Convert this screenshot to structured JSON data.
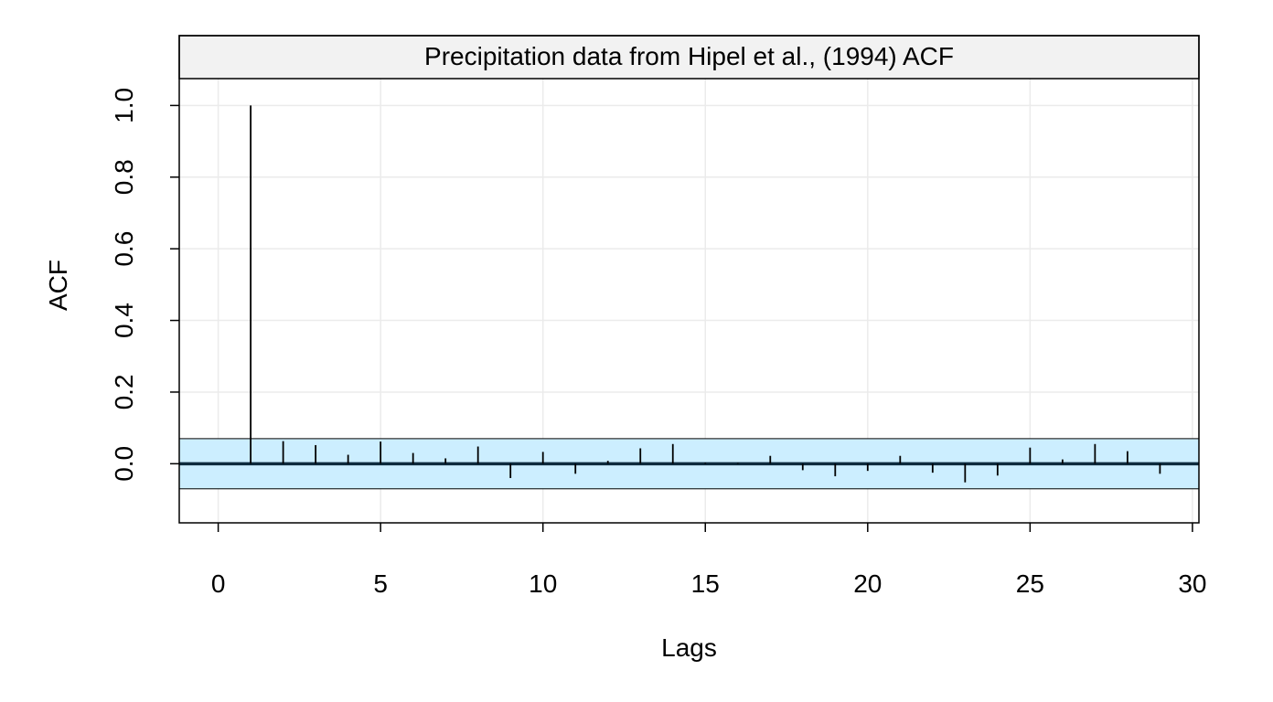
{
  "chart_data": {
    "type": "bar",
    "title": "Precipitation data from Hipel et al., (1994) ACF",
    "xlabel": "Lags",
    "ylabel": "ACF",
    "xlim": [
      -1.2,
      30.2
    ],
    "ylim": [
      -0.165,
      1.075
    ],
    "xticks": [
      0,
      5,
      10,
      15,
      20,
      25,
      30
    ],
    "xtick_labels": [
      "0",
      "5",
      "10",
      "15",
      "20",
      "25",
      "30"
    ],
    "yticks": [
      0.0,
      0.2,
      0.4,
      0.6,
      0.8,
      1.0
    ],
    "ytick_labels": [
      "0.0",
      "0.2",
      "0.4",
      "0.6",
      "0.8",
      "1.0"
    ],
    "grid": true,
    "confidence_band": [
      -0.07,
      0.07
    ],
    "lags": [
      1,
      2,
      3,
      4,
      5,
      6,
      7,
      8,
      9,
      10,
      11,
      12,
      13,
      14,
      15,
      16,
      17,
      18,
      19,
      20,
      21,
      22,
      23,
      24,
      25,
      26,
      27,
      28,
      29
    ],
    "values": [
      1.0,
      0.063,
      0.052,
      0.025,
      0.062,
      0.03,
      0.015,
      0.048,
      -0.04,
      0.033,
      -0.028,
      0.008,
      0.043,
      0.055,
      0.003,
      0.002,
      0.022,
      -0.018,
      -0.035,
      -0.02,
      0.022,
      -0.025,
      -0.052,
      -0.033,
      0.045,
      0.012,
      0.055,
      0.035,
      -0.028
    ],
    "colors": {
      "band_fill": "#cceeff",
      "strip_fill": "#f2f2f2",
      "grid": "#ebebeb",
      "zero_line": "#0d2b3d"
    }
  }
}
